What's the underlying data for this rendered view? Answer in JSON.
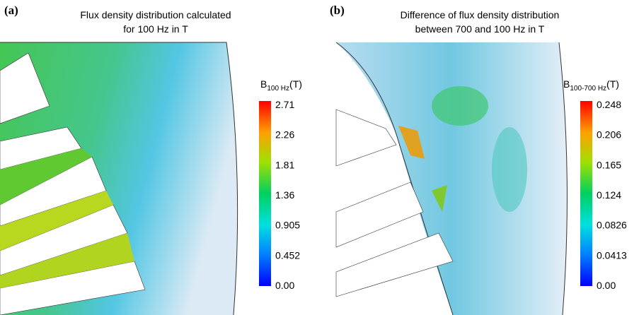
{
  "panels": [
    {
      "label": "(a)",
      "title": [
        "Flux density distribution calculated",
        "for 100 Hz in T"
      ],
      "colorbar": {
        "symbol": "B",
        "subscript": "100 Hz",
        "unit": "(T)",
        "ticks": [
          "2.71",
          "2.26",
          "1.81",
          "1.36",
          "0.905",
          "0.452",
          "0.00"
        ]
      }
    },
    {
      "label": "(b)",
      "title": [
        "Difference of flux density distribution",
        "between 700 and 100 Hz in T"
      ],
      "colorbar": {
        "symbol": "B",
        "subscript": "100-700 Hz",
        "unit": "(T)",
        "ticks": [
          "0.248",
          "0.206",
          "0.165",
          "0.124",
          "0.0826",
          "0.0413",
          "0.00"
        ]
      }
    }
  ]
}
